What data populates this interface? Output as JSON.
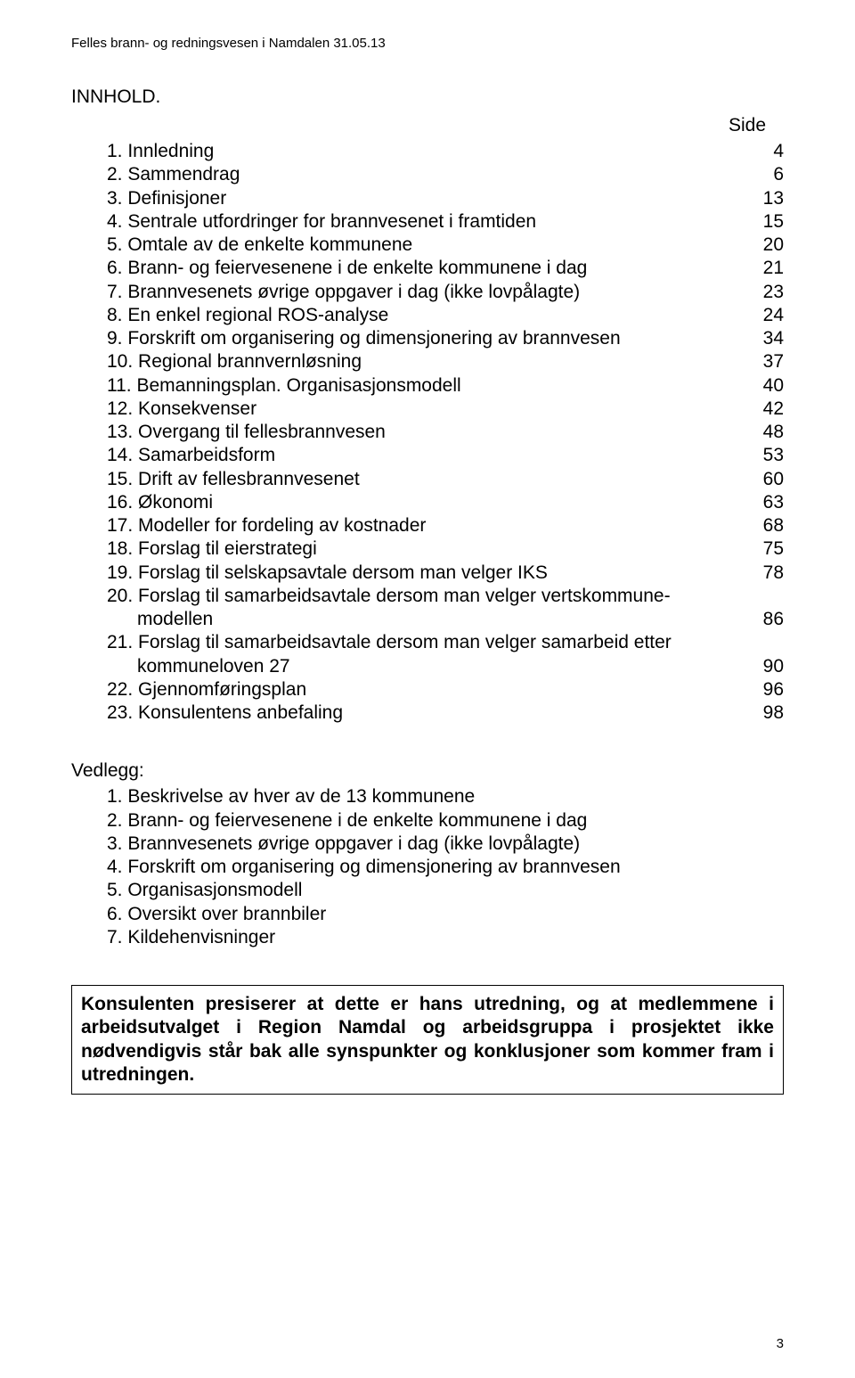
{
  "header": "Felles brann- og redningsvesen i Namdalen 31.05.13",
  "section_title": "INNHOLD.",
  "side_label": "Side",
  "toc": [
    {
      "num": "1.",
      "text": "Innledning",
      "page": "4"
    },
    {
      "num": "2.",
      "text": "Sammendrag",
      "page": "6"
    },
    {
      "num": "3.",
      "text": "Definisjoner",
      "page": "13"
    },
    {
      "num": "4.",
      "text": "Sentrale utfordringer for brannvesenet i framtiden",
      "page": "15"
    },
    {
      "num": "5.",
      "text": "Omtale av de enkelte kommunene",
      "page": "20"
    },
    {
      "num": "6.",
      "text": "Brann- og feiervesenene i de enkelte kommunene i dag",
      "page": "21"
    },
    {
      "num": "7.",
      "text": "Brannvesenets øvrige oppgaver i dag (ikke lovpålagte)",
      "page": "23"
    },
    {
      "num": "8.",
      "text": "En enkel regional ROS-analyse",
      "page": "24"
    },
    {
      "num": "9.",
      "text": "Forskrift om organisering og dimensjonering av brannvesen",
      "page": "34"
    },
    {
      "num": "10.",
      "text": "Regional brannvernløsning",
      "page": "37"
    },
    {
      "num": "11.",
      "text": "Bemanningsplan. Organisasjonsmodell",
      "page": "40"
    },
    {
      "num": "12.",
      "text": "Konsekvenser",
      "page": "42"
    },
    {
      "num": "13.",
      "text": "Overgang til fellesbrannvesen",
      "page": "48"
    },
    {
      "num": "14.",
      "text": "Samarbeidsform",
      "page": "53"
    },
    {
      "num": "15.",
      "text": "Drift av fellesbrannvesenet",
      "page": "60"
    },
    {
      "num": "16.",
      "text": "Økonomi",
      "page": "63"
    },
    {
      "num": "17.",
      "text": "Modeller for fordeling av kostnader",
      "page": "68"
    },
    {
      "num": "18.",
      "text": "Forslag til eierstrategi",
      "page": "75"
    },
    {
      "num": "19.",
      "text": "Forslag til selskapsavtale dersom man velger IKS",
      "page": "78"
    },
    {
      "num": "20.",
      "text": "Forslag til samarbeidsavtale dersom man velger vertskommune-",
      "cont": "modellen",
      "page": "86"
    },
    {
      "num": "21.",
      "text": "Forslag til samarbeidsavtale dersom man velger samarbeid etter",
      "cont": "kommuneloven 27",
      "page": "90"
    },
    {
      "num": "22.",
      "text": "Gjennomføringsplan",
      "page": "96"
    },
    {
      "num": "23.",
      "text": "Konsulentens anbefaling",
      "page": "98"
    }
  ],
  "vedlegg_title": "Vedlegg:",
  "vedlegg": [
    {
      "num": "1.",
      "text": "Beskrivelse av hver av de 13 kommunene"
    },
    {
      "num": "2.",
      "text": "Brann- og feiervesenene i de enkelte kommunene i dag"
    },
    {
      "num": "3.",
      "text": "Brannvesenets øvrige oppgaver i dag (ikke lovpålagte)"
    },
    {
      "num": "4.",
      "text": "Forskrift om organisering og dimensjonering av brannvesen"
    },
    {
      "num": "5.",
      "text": "Organisasjonsmodell"
    },
    {
      "num": "6.",
      "text": "Oversikt over brannbiler"
    },
    {
      "num": "7.",
      "text": "Kildehenvisninger"
    }
  ],
  "note": "Konsulenten presiserer at dette er hans utredning, og at medlemmene i arbeidsutvalget i Region Namdal og arbeidsgruppa i prosjektet ikke nødvendigvis står bak alle synspunkter og konklusjoner som kommer fram i utredningen.",
  "page_number": "3"
}
